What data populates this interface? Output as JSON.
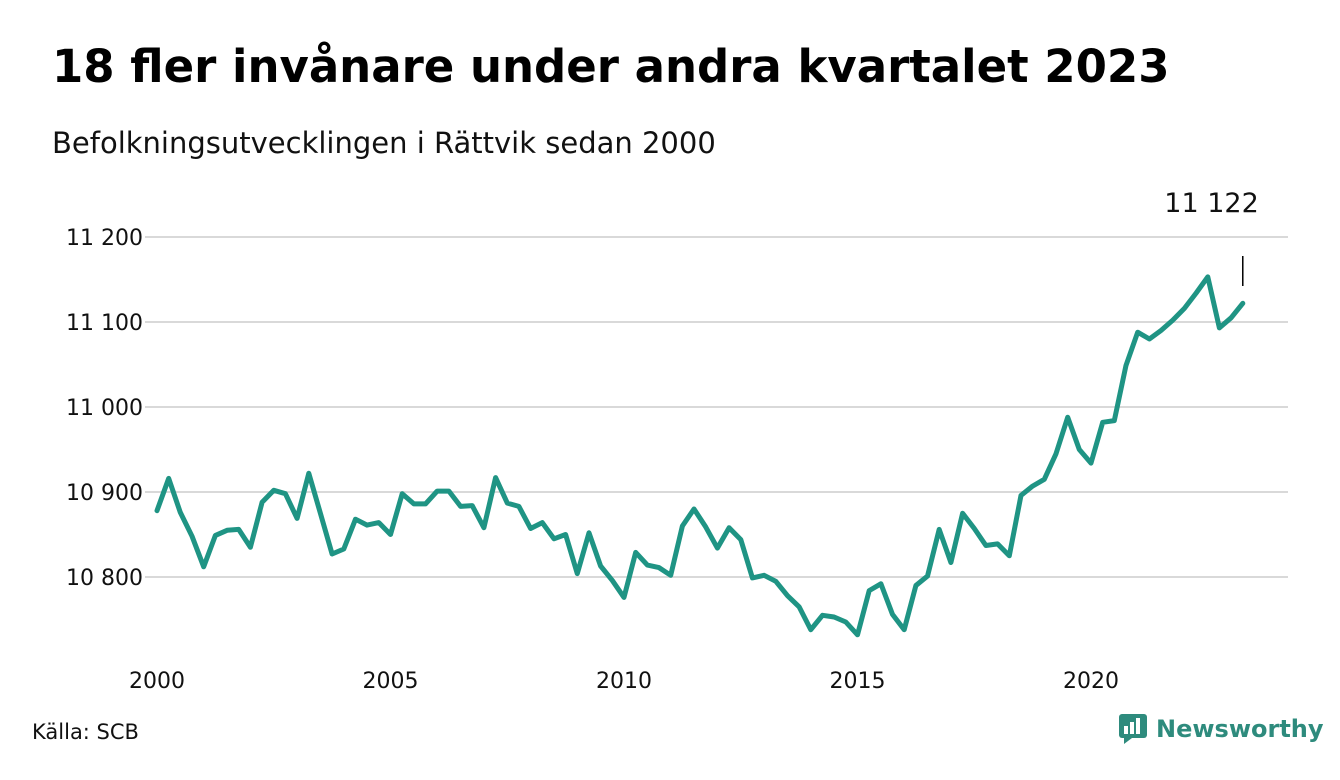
{
  "title": "18 fler invånare under andra kvartalet 2023",
  "subtitle": "Befolkningsutvecklingen i Rättvik sedan 2000",
  "source": "Källa: SCB",
  "brand": {
    "name": "Newsworthy",
    "icon": "bar-chart-logo-icon",
    "color": "#2e8b7d"
  },
  "colors": {
    "line": "#1f9484",
    "grid": "#d9d9d9"
  },
  "chart_data": {
    "type": "line",
    "title": "18 fler invånare under andra kvartalet 2023",
    "subtitle": "Befolkningsutvecklingen i Rättvik sedan 2000",
    "xlim": [
      2000,
      2023.5
    ],
    "ylim": [
      10720,
      11200
    ],
    "x_ticks": [
      2000,
      2005,
      2010,
      2015,
      2020
    ],
    "x_tick_labels": [
      "2000",
      "2005",
      "2010",
      "2015",
      "2020"
    ],
    "y_ticks": [
      10800,
      10900,
      11000,
      11100,
      11200
    ],
    "y_tick_labels": [
      "10 800",
      "10 900",
      "11 000",
      "11 100",
      "11 200"
    ],
    "grid": true,
    "end_label": "11 122",
    "series": [
      {
        "x": [
          2000.0,
          2000.25,
          2000.5,
          2000.75,
          2001.0,
          2001.25,
          2001.5,
          2001.75,
          2002.0,
          2002.25,
          2002.5,
          2002.75,
          2003.0,
          2003.25,
          2003.5,
          2003.75,
          2004.0,
          2004.25,
          2004.5,
          2004.75,
          2005.0,
          2005.25,
          2005.5,
          2005.75,
          2006.0,
          2006.25,
          2006.5,
          2006.75,
          2007.0,
          2007.25,
          2007.5,
          2007.75,
          2008.0,
          2008.25,
          2008.5,
          2008.75,
          2009.0,
          2009.25,
          2009.5,
          2009.75,
          2010.0,
          2010.25,
          2010.5,
          2010.75,
          2011.0,
          2011.25,
          2011.5,
          2011.75,
          2012.0,
          2012.25,
          2012.5,
          2012.75,
          2013.0,
          2013.25,
          2013.5,
          2013.75,
          2014.0,
          2014.25,
          2014.5,
          2014.75,
          2015.0,
          2015.25,
          2015.5,
          2015.75,
          2016.0,
          2016.25,
          2016.5,
          2016.75,
          2017.0,
          2017.25,
          2017.5,
          2017.75,
          2018.0,
          2018.25,
          2018.5,
          2018.75,
          2019.0,
          2019.25,
          2019.5,
          2019.75,
          2020.0,
          2020.25,
          2020.5,
          2020.75,
          2021.0,
          2021.25,
          2021.5,
          2021.75,
          2022.0,
          2022.25,
          2022.5,
          2022.75,
          2023.0,
          2023.25
        ],
        "values": [
          10878,
          10916,
          10876,
          10848,
          10812,
          10849,
          10855,
          10856,
          10835,
          10888,
          10902,
          10898,
          10869,
          10922,
          10875,
          10827,
          10833,
          10868,
          10861,
          10864,
          10850,
          10898,
          10886,
          10886,
          10901,
          10901,
          10883,
          10884,
          10858,
          10917,
          10887,
          10883,
          10857,
          10864,
          10845,
          10850,
          10804,
          10852,
          10813,
          10796,
          10776,
          10829,
          10814,
          10811,
          10802,
          10860,
          10880,
          10859,
          10834,
          10858,
          10844,
          10799,
          10802,
          10795,
          10778,
          10765,
          10738,
          10755,
          10753,
          10747,
          10732,
          10784,
          10792,
          10756,
          10738,
          10790,
          10801,
          10856,
          10817,
          10875,
          10857,
          10837,
          10839,
          10825,
          10896,
          10907,
          10915,
          10945,
          10988,
          10950,
          10934,
          10982,
          10984,
          11049,
          11088,
          11080,
          11090,
          11102,
          11116,
          11134,
          11153,
          11093,
          11105,
          11122
        ]
      }
    ]
  }
}
